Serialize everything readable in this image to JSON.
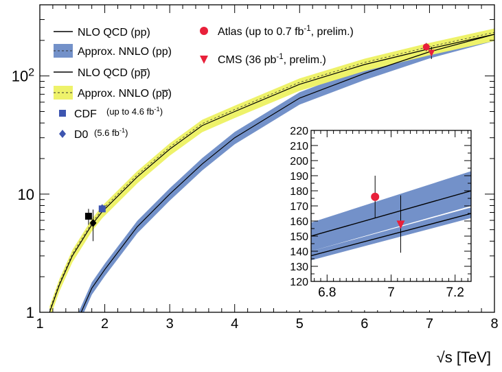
{
  "chart_data": [
    {
      "type": "line",
      "panel": "main",
      "xlabel_prefix": "√",
      "xlabel_symbol": "s",
      "xlabel_unit": " [TeV]",
      "ylabel": "",
      "xlim": [
        1,
        8
      ],
      "ylim": [
        1,
        400
      ],
      "y_scale": "log",
      "x_ticks": [
        "1",
        "2",
        "3",
        "4",
        "5",
        "6",
        "7",
        "8"
      ],
      "y_ticks": [
        {
          "value": 1,
          "label": "1",
          "sup": ""
        },
        {
          "value": 10,
          "label": "10",
          "sup": ""
        },
        {
          "value": 100,
          "label": "10",
          "sup": "2"
        }
      ],
      "legend": [
        {
          "type": "line",
          "label": "NLO QCD (pp)",
          "color": "#000000"
        },
        {
          "type": "band",
          "label": "Approx. NNLO (pp)",
          "color": "#7391c9"
        },
        {
          "type": "line",
          "label": "NLO QCD (pp̅)",
          "color": "#000000"
        },
        {
          "type": "band",
          "label": "Approx. NNLO (pp̅)",
          "color": "#eef26a"
        },
        {
          "type": "square",
          "label": "CDF",
          "note": "(up to 4.6 fb",
          "note_sup": "-1",
          "note_end": ")",
          "color": "#3d55b0"
        },
        {
          "type": "diamond",
          "label": "D0",
          "note": "(5.6 fb",
          "note_sup": "-1",
          "note_end": ")",
          "color": "#3d55b0"
        },
        {
          "type": "circle",
          "label": "Atlas (up to 0.7 fb",
          "label_sup": "-1",
          "label_end": ", prelim.)",
          "color": "#e8203a"
        },
        {
          "type": "triangle",
          "label": "CMS (36 pb",
          "label_sup": "-1",
          "label_end": ", prelim.)",
          "color": "#e8203a"
        }
      ],
      "series": [
        {
          "name": "NLO QCD (pp̅)",
          "x": [
            1.15,
            1.3,
            1.5,
            1.8,
            1.96,
            2.5,
            3,
            3.5,
            4,
            5,
            6,
            7,
            8
          ],
          "y": [
            1,
            1.7,
            3,
            5.5,
            7.1,
            14,
            24,
            38,
            50,
            85,
            125,
            170,
            225
          ],
          "band_rel": 0.12
        },
        {
          "name": "NLO QCD (pp)",
          "x": [
            1.6,
            1.8,
            2.0,
            2.5,
            3,
            3.5,
            4,
            5,
            6,
            7,
            8
          ],
          "y": [
            0.9,
            1.6,
            2.3,
            5.3,
            10,
            18,
            30,
            65,
            105,
            160,
            225
          ],
          "band_rel": 0.12
        }
      ],
      "points": [
        {
          "name": "CDF",
          "shape": "square",
          "x": 1.96,
          "y": 7.5,
          "err": 0.4,
          "color": "#3d55b0"
        },
        {
          "name": "D0",
          "shape": "diamond",
          "x": 1.96,
          "y": 7.6,
          "err": 0.5,
          "color": "#3d55b0"
        },
        {
          "name": "black square",
          "shape": "square",
          "x": 1.75,
          "y": 6.5,
          "err": 1.0,
          "color": "#000000"
        },
        {
          "name": "black diamond",
          "shape": "diamond",
          "x": 1.82,
          "y": 5.7,
          "err": 1.7,
          "color": "#000000"
        },
        {
          "name": "Atlas",
          "shape": "circle",
          "x": 6.95,
          "y": 176,
          "err": 14,
          "color": "#e8203a"
        },
        {
          "name": "CMS",
          "shape": "triangle",
          "x": 7.03,
          "y": 158,
          "err": 19,
          "color": "#e8203a"
        }
      ]
    },
    {
      "type": "line",
      "panel": "inset",
      "xlim": [
        6.75,
        7.25
      ],
      "ylim": [
        120,
        220
      ],
      "x_ticks": [
        "6.8",
        "7",
        "7.2"
      ],
      "y_ticks": [
        "120",
        "130",
        "140",
        "150",
        "160",
        "170",
        "180",
        "190",
        "200",
        "210",
        "220"
      ],
      "series": [
        {
          "name": "upper",
          "x": [
            6.75,
            7.25
          ],
          "y": [
            150,
            180
          ],
          "band": [
            [
              140,
              159
            ],
            [
              170,
              193
            ]
          ]
        },
        {
          "name": "lower",
          "x": [
            6.75,
            7.25
          ],
          "y": [
            137,
            165
          ],
          "band": [
            [
              134,
              140
            ],
            [
              162,
              169
            ]
          ]
        }
      ],
      "points": [
        {
          "name": "Atlas",
          "shape": "circle",
          "x": 6.95,
          "y": 176,
          "err": 14,
          "color": "#e8203a"
        },
        {
          "name": "CMS",
          "shape": "triangle",
          "x": 7.03,
          "y": 158,
          "err": 19,
          "color": "#e8203a"
        }
      ]
    }
  ]
}
